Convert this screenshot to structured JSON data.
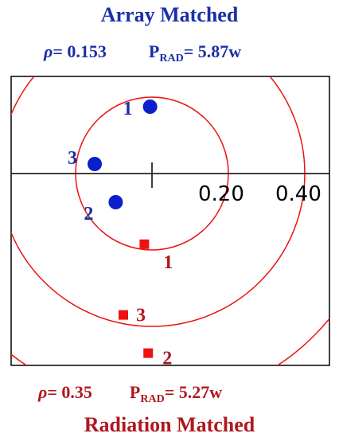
{
  "top": {
    "title": "Array Matched",
    "rho_symbol": "ρ",
    "rho_value": "= 0.153",
    "prad_label": "P",
    "prad_sub": "RAD",
    "prad_value": "= 5.87w",
    "color": "#1a2fa8"
  },
  "bottom": {
    "title": "Radiation Matched",
    "rho_symbol": "ρ",
    "rho_value": "= 0.35",
    "prad_label": "P",
    "prad_sub": "RAD",
    "prad_value": "= 5.27w",
    "color": "#b0171e"
  },
  "axis_labels": [
    "0.20",
    "0.40"
  ],
  "circle_color": "#ee1111",
  "array_points": [
    {
      "label": "1",
      "x": -0.005,
      "y": 0.175
    },
    {
      "label": "3",
      "x": -0.15,
      "y": 0.025
    },
    {
      "label": "2",
      "x": -0.095,
      "y": -0.075
    }
  ],
  "radiation_points": [
    {
      "label": "1",
      "x": -0.02,
      "y": -0.185
    },
    {
      "label": "3",
      "x": -0.075,
      "y": -0.37
    },
    {
      "label": "2",
      "x": -0.01,
      "y": -0.47
    }
  ]
}
